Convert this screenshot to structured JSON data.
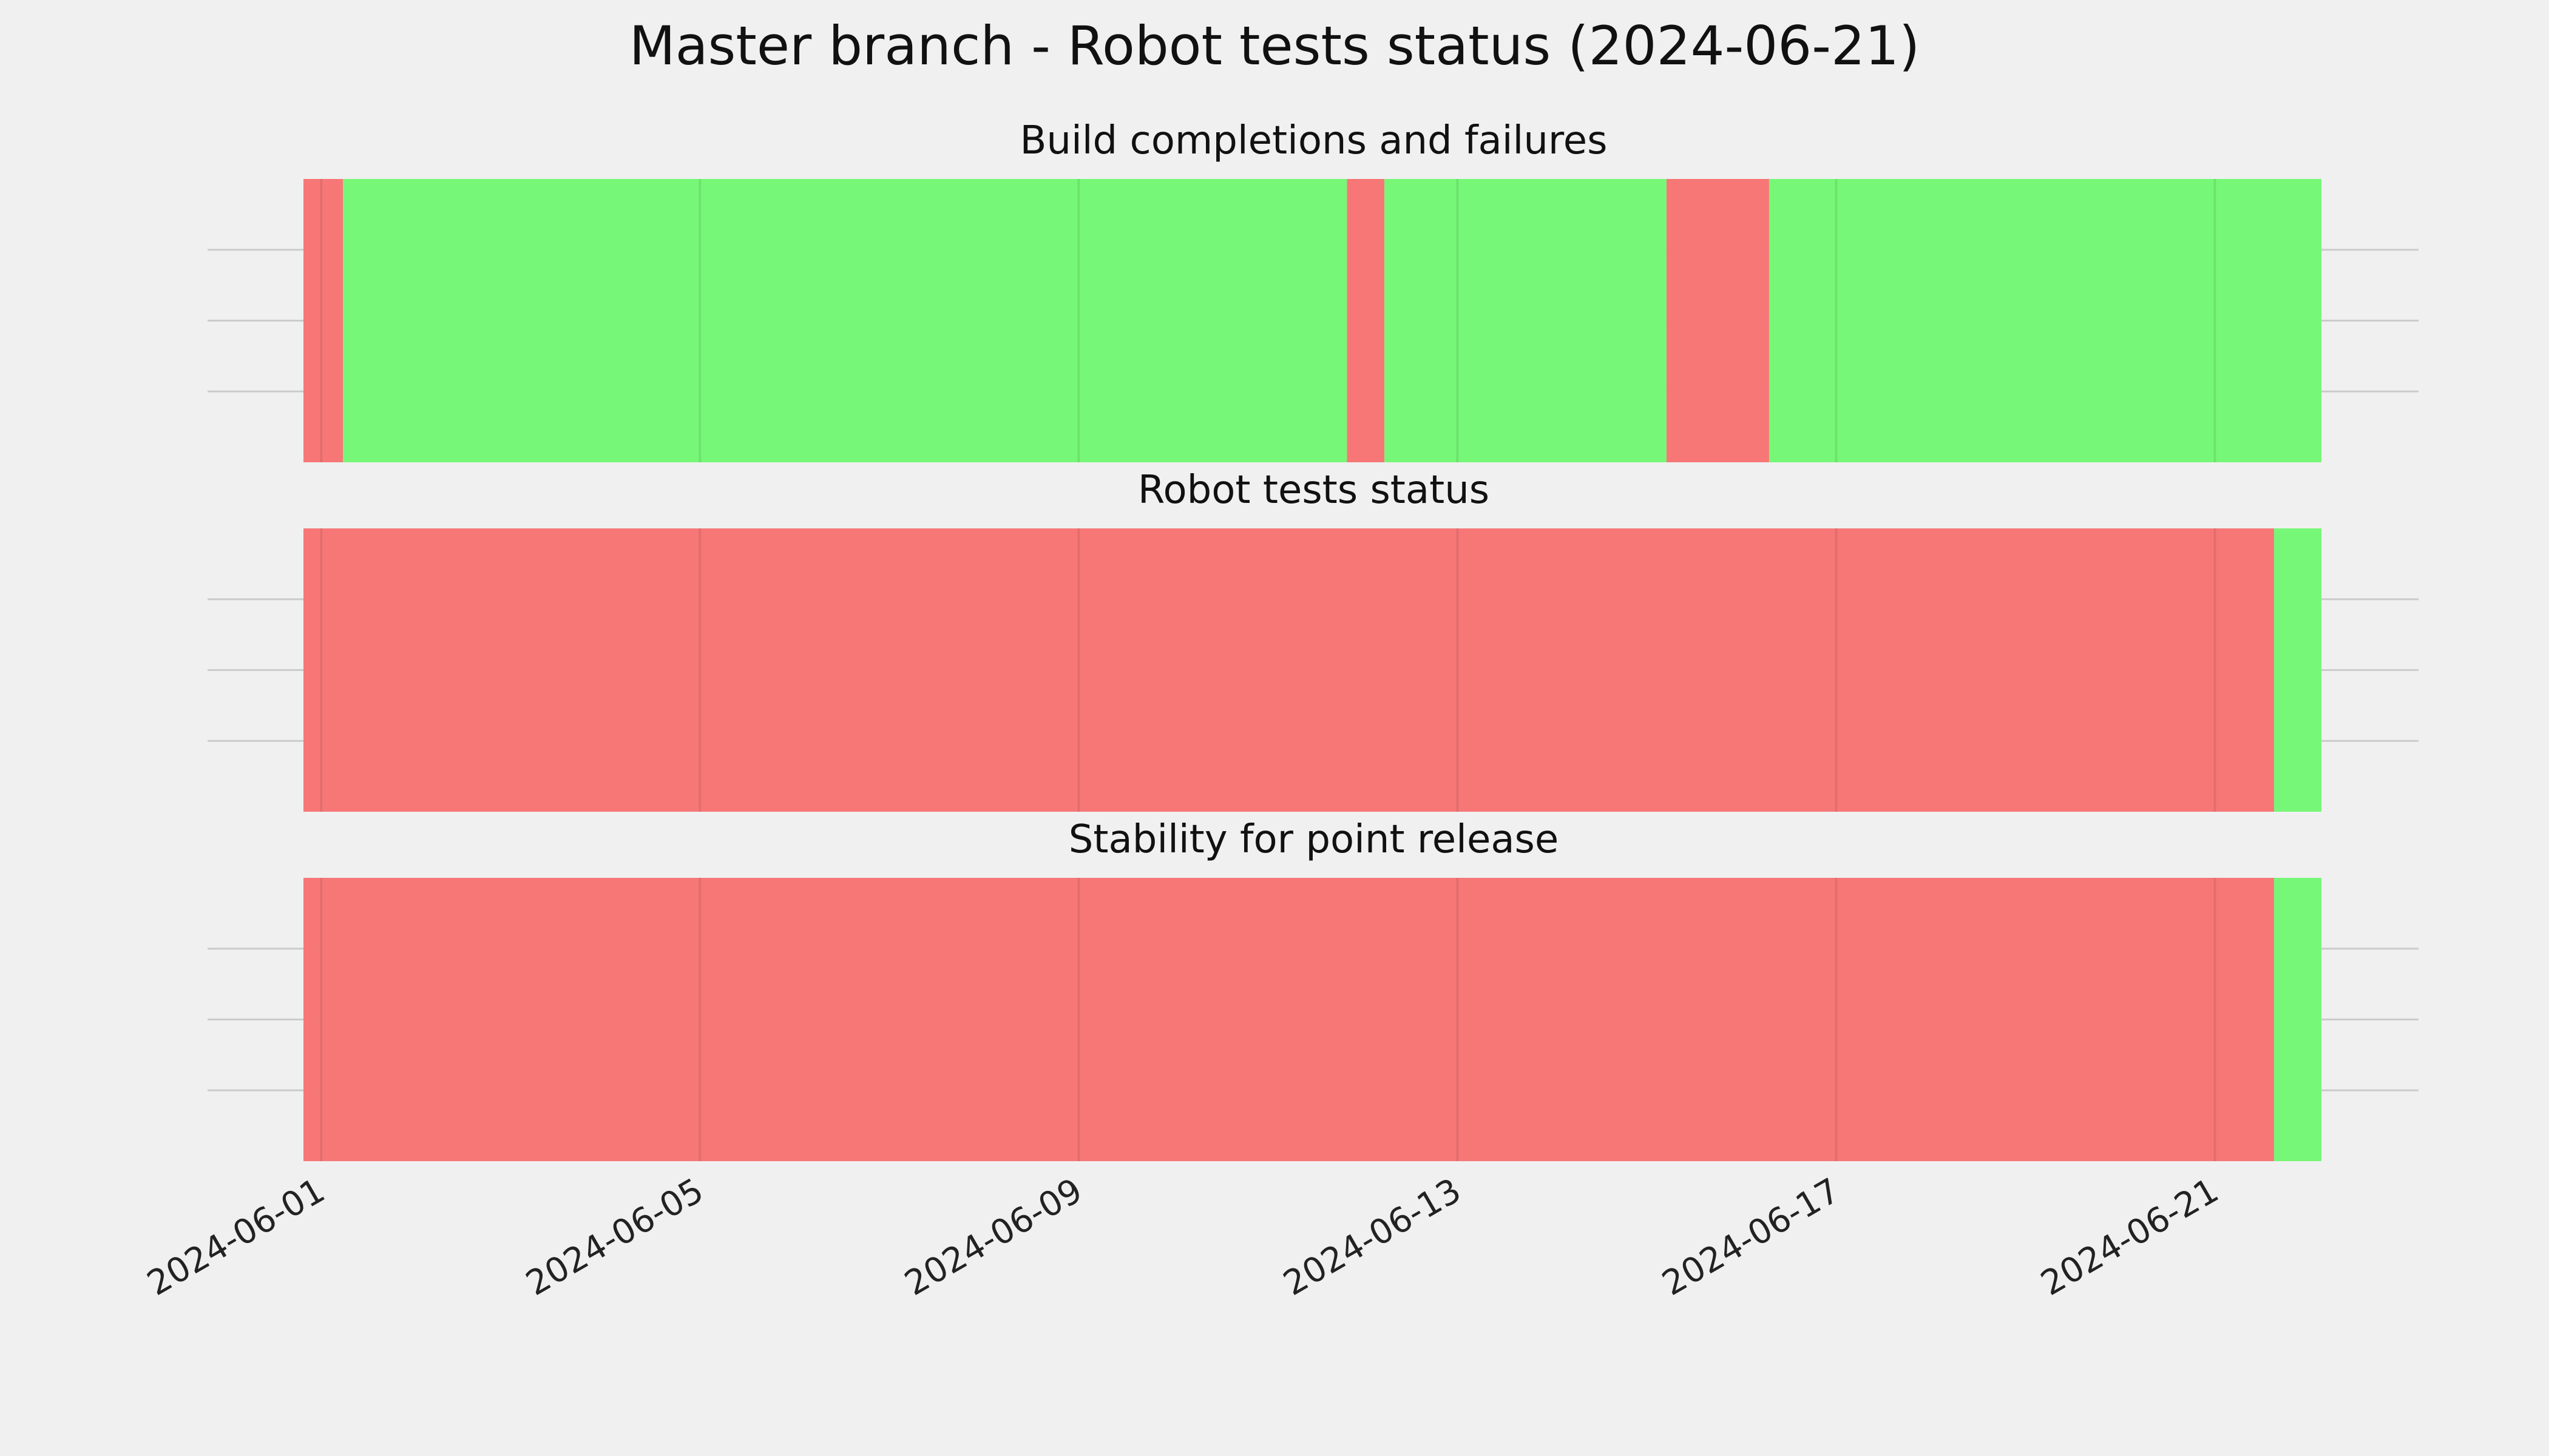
{
  "figure": {
    "title": "Master branch - Robot tests status (2024-06-21)",
    "background": "#f0f0f0"
  },
  "colors": {
    "pass": "#77f777",
    "fail": "#f77777",
    "grid": "#cbcbcb"
  },
  "chart_data": {
    "type": "timeline",
    "x_axis": {
      "type": "date",
      "range": [
        "2024-05-31T19:30",
        "2024-06-22T03:00"
      ],
      "ticks": [
        "2024-06-01",
        "2024-06-05",
        "2024-06-09",
        "2024-06-13",
        "2024-06-17",
        "2024-06-21"
      ]
    },
    "y_axis": {
      "tick_labels": "none",
      "grid": true,
      "gridlines": 3
    },
    "grid": true,
    "panels": [
      {
        "title": "Build completions and failures",
        "segments": [
          {
            "start": "2024-05-31T19:30",
            "end": "2024-06-01T05:30",
            "status": "fail"
          },
          {
            "start": "2024-06-01T05:30",
            "end": "2024-06-11T20:00",
            "status": "pass"
          },
          {
            "start": "2024-06-11T20:00",
            "end": "2024-06-12T05:30",
            "status": "fail"
          },
          {
            "start": "2024-06-12T05:30",
            "end": "2024-06-15T05:00",
            "status": "pass"
          },
          {
            "start": "2024-06-15T05:00",
            "end": "2024-06-16T07:00",
            "status": "fail"
          },
          {
            "start": "2024-06-16T07:00",
            "end": "2024-06-22T03:00",
            "status": "pass"
          }
        ]
      },
      {
        "title": "Robot tests status",
        "segments": [
          {
            "start": "2024-05-31T19:30",
            "end": "2024-06-21T15:00",
            "status": "fail"
          },
          {
            "start": "2024-06-21T15:00",
            "end": "2024-06-22T03:00",
            "status": "pass"
          }
        ]
      },
      {
        "title": "Stability for point release",
        "segments": [
          {
            "start": "2024-05-31T19:30",
            "end": "2024-06-21T15:00",
            "status": "fail"
          },
          {
            "start": "2024-06-21T15:00",
            "end": "2024-06-22T03:00",
            "status": "pass"
          }
        ]
      }
    ]
  }
}
